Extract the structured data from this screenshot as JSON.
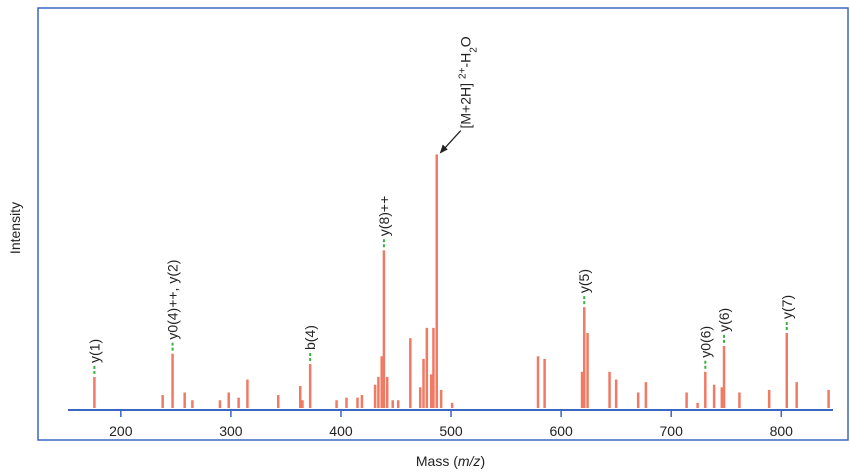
{
  "chart_data": {
    "type": "stick",
    "xlabel_parts": [
      "Mass (",
      "m/z",
      ")"
    ],
    "ylabel": "Intensity",
    "x": [
      176,
      238,
      247,
      258,
      265,
      290,
      298,
      307,
      315,
      343,
      363,
      365,
      372,
      396,
      405,
      415,
      419,
      431,
      434,
      437,
      439,
      442,
      447,
      452,
      463,
      472,
      475,
      478,
      482,
      484,
      487,
      491,
      501,
      579,
      585,
      619,
      621,
      624,
      644,
      650,
      670,
      677,
      714,
      724,
      731,
      739,
      746,
      748,
      762,
      789,
      805,
      814,
      843
    ],
    "values": [
      12,
      5,
      21,
      6,
      3,
      3,
      6,
      4,
      11,
      5,
      8.5,
      3,
      17,
      3,
      4,
      4,
      5,
      9,
      12,
      20,
      61,
      12,
      3,
      3,
      27,
      8,
      19,
      31,
      13,
      31,
      98,
      7,
      2,
      20,
      19,
      14,
      39,
      29,
      14,
      11,
      6,
      10,
      6,
      2,
      14,
      9,
      8,
      24,
      6,
      7,
      29,
      10,
      7
    ],
    "color": "#f07a64",
    "xlim": [
      152,
      847
    ],
    "ylim": [
      0,
      150
    ],
    "xticks": [
      200,
      300,
      400,
      500,
      600,
      700,
      800
    ],
    "annotations": [
      {
        "text": "y(1)",
        "x": 176
      },
      {
        "text": "y0(4)++, y(2)",
        "x": 247
      },
      {
        "text": "b(4)",
        "x": 372
      },
      {
        "text": "y(8)++",
        "x": 439
      },
      {
        "text": "y(5)",
        "x": 621
      },
      {
        "text": "y0(6)",
        "x": 731
      },
      {
        "text": "y(6)",
        "x": 748
      },
      {
        "text": "y(7)",
        "x": 805
      }
    ],
    "peak_annotation": {
      "parts": [
        "[M+2H]",
        "2+",
        "-H",
        "2",
        "O"
      ],
      "x": 487
    }
  }
}
